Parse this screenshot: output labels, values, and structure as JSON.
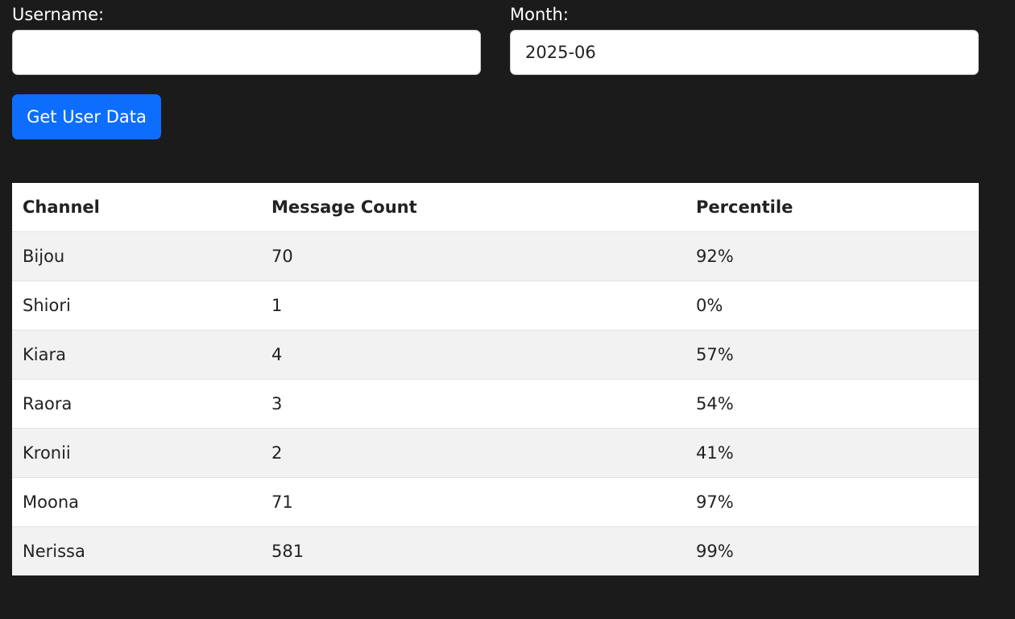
{
  "form": {
    "username_label": "Username:",
    "username_value": "",
    "month_label": "Month:",
    "month_value": "2025-06",
    "submit_label": "Get User Data"
  },
  "table": {
    "headers": [
      "Channel",
      "Message Count",
      "Percentile"
    ],
    "rows": [
      [
        "Bijou",
        "70",
        "92%"
      ],
      [
        "Shiori",
        "1",
        "0%"
      ],
      [
        "Kiara",
        "4",
        "57%"
      ],
      [
        "Raora",
        "3",
        "54%"
      ],
      [
        "Kronii",
        "2",
        "41%"
      ],
      [
        "Moona",
        "71",
        "97%"
      ],
      [
        "Nerissa",
        "581",
        "99%"
      ]
    ]
  }
}
